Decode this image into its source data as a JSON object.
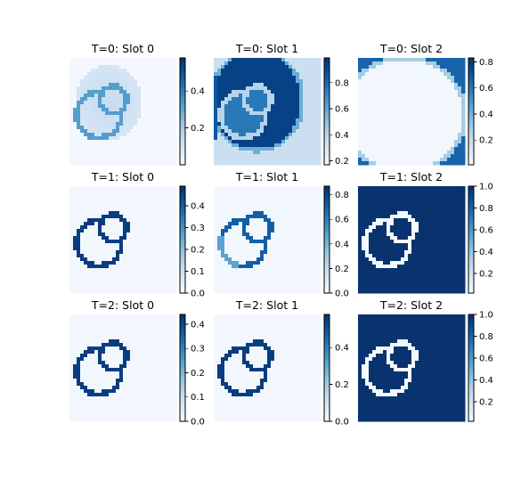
{
  "chart_data": {
    "type": "heatmap",
    "colormap": "Blues",
    "grid": false,
    "layout_rows": 3,
    "layout_cols": 3,
    "panels": [
      {
        "title": "T=0: Slot 0",
        "t": 0,
        "slot": 0,
        "pattern": "blob_faint",
        "vmin": 0,
        "vmax": 0.58,
        "colorbar_ticks": [
          0.2,
          0.4
        ],
        "colorbar_labels": [
          "0.2",
          "0.4"
        ]
      },
      {
        "title": "T=0: Slot 1",
        "t": 0,
        "slot": 1,
        "pattern": "blob_dark",
        "vmin": 0.17,
        "vmax": 0.99,
        "colorbar_ticks": [
          0.2,
          0.4,
          0.6,
          0.8
        ],
        "colorbar_labels": [
          "0.2",
          "0.4",
          "0.6",
          "0.8"
        ]
      },
      {
        "title": "T=0: Slot 2",
        "t": 0,
        "slot": 2,
        "pattern": "background_hole",
        "vmin": 0.01,
        "vmax": 0.83,
        "colorbar_ticks": [
          0.2,
          0.4,
          0.6,
          0.8
        ],
        "colorbar_labels": [
          "0.2",
          "0.4",
          "0.6",
          "0.8"
        ]
      },
      {
        "title": "T=1: Slot 0",
        "t": 1,
        "slot": 0,
        "pattern": "outline",
        "vmin": 0,
        "vmax": 0.49,
        "colorbar_ticks": [
          0.0,
          0.1,
          0.2,
          0.3,
          0.4
        ],
        "colorbar_labels": [
          "0.0",
          "0.1",
          "0.2",
          "0.3",
          "0.4"
        ]
      },
      {
        "title": "T=1: Slot 1",
        "t": 1,
        "slot": 1,
        "pattern": "outline_light",
        "vmin": 0,
        "vmax": 0.87,
        "colorbar_ticks": [
          0.0,
          0.2,
          0.4,
          0.6,
          0.8
        ],
        "colorbar_labels": [
          "0.0",
          "0.2",
          "0.4",
          "0.6",
          "0.8"
        ]
      },
      {
        "title": "T=1: Slot 2",
        "t": 1,
        "slot": 2,
        "pattern": "outline_inverted",
        "vmin": 0.02,
        "vmax": 1.0,
        "colorbar_ticks": [
          0.2,
          0.4,
          0.6,
          0.8,
          1.0
        ],
        "colorbar_labels": [
          "0.2",
          "0.4",
          "0.6",
          "0.8",
          "1.0"
        ]
      },
      {
        "title": "T=2: Slot 0",
        "t": 2,
        "slot": 0,
        "pattern": "outline",
        "vmin": 0,
        "vmax": 0.44,
        "colorbar_ticks": [
          0.0,
          0.1,
          0.2,
          0.3,
          0.4
        ],
        "colorbar_labels": [
          "0.0",
          "0.1",
          "0.2",
          "0.3",
          "0.4"
        ]
      },
      {
        "title": "T=2: Slot 1",
        "t": 2,
        "slot": 1,
        "pattern": "outline",
        "vmin": 0,
        "vmax": 0.58,
        "colorbar_ticks": [
          0.0,
          0.2,
          0.4
        ],
        "colorbar_labels": [
          "0.0",
          "0.2",
          "0.4"
        ]
      },
      {
        "title": "T=2: Slot 2",
        "t": 2,
        "slot": 2,
        "pattern": "outline_inverted",
        "vmin": 0.02,
        "vmax": 1.0,
        "colorbar_ticks": [
          0.2,
          0.4,
          0.6,
          0.8,
          1.0
        ],
        "colorbar_labels": [
          "0.2",
          "0.4",
          "0.6",
          "0.8",
          "1.0"
        ]
      }
    ]
  }
}
